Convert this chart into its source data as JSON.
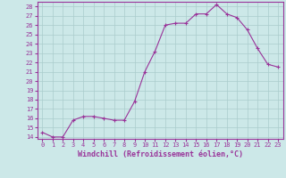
{
  "x": [
    0,
    1,
    2,
    3,
    4,
    5,
    6,
    7,
    8,
    9,
    10,
    11,
    12,
    13,
    14,
    15,
    16,
    17,
    18,
    19,
    20,
    21,
    22,
    23
  ],
  "y": [
    14.5,
    14.0,
    14.0,
    15.8,
    16.2,
    16.2,
    16.0,
    15.8,
    15.8,
    17.8,
    21.0,
    23.2,
    26.0,
    26.2,
    26.2,
    27.2,
    27.2,
    28.2,
    27.2,
    26.8,
    25.5,
    23.5,
    21.8,
    21.5
  ],
  "line_color": "#993399",
  "marker": "+",
  "marker_size": 3,
  "bg_color": "#cce8e8",
  "grid_color": "#aacccc",
  "xlabel": "Windchill (Refroidissement éolien,°C)",
  "xlabel_color": "#993399",
  "xlim": [
    -0.5,
    23.5
  ],
  "ylim": [
    13.8,
    28.5
  ],
  "yticks": [
    14,
    15,
    16,
    17,
    18,
    19,
    20,
    21,
    22,
    23,
    24,
    25,
    26,
    27,
    28
  ],
  "xticks": [
    0,
    1,
    2,
    3,
    4,
    5,
    6,
    7,
    8,
    9,
    10,
    11,
    12,
    13,
    14,
    15,
    16,
    17,
    18,
    19,
    20,
    21,
    22,
    23
  ],
  "tick_fontsize": 5.0,
  "label_fontsize": 6.0,
  "spine_color": "#993399"
}
